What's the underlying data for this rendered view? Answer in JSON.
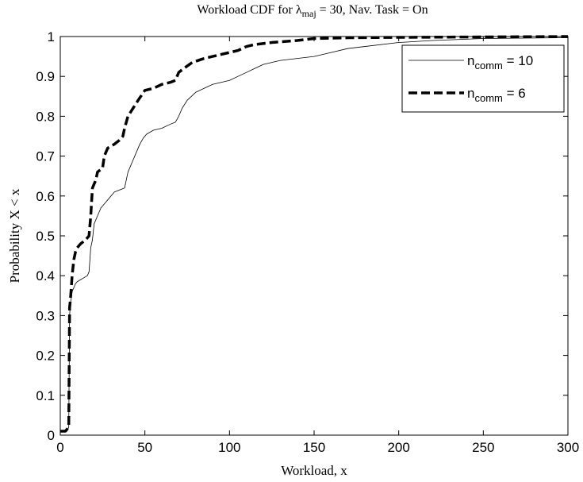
{
  "chart_data": {
    "type": "line",
    "title": {
      "prefix": "Workload CDF for ",
      "symbol": "λ",
      "subscript": "maj",
      "suffix": " = 30, Nav. Task = On"
    },
    "xlabel": "Workload, x",
    "ylabel": "Probability X < x",
    "xlim": [
      0,
      300
    ],
    "ylim": [
      0,
      1
    ],
    "xticks": [
      "0",
      "50",
      "100",
      "150",
      "200",
      "250",
      "300"
    ],
    "yticks": [
      "0",
      "0.1",
      "0.2",
      "0.3",
      "0.4",
      "0.5",
      "0.6",
      "0.7",
      "0.8",
      "0.9",
      "1"
    ],
    "grid": false,
    "legend_position": "top-right",
    "series": [
      {
        "label": {
          "base": "n",
          "subscript": "comm",
          "suffix": " = 10"
        },
        "style": "thin-solid",
        "color": "#000000",
        "points": [
          [
            0,
            0.01
          ],
          [
            4,
            0.01
          ],
          [
            5,
            0.02
          ],
          [
            5.5,
            0.3
          ],
          [
            6,
            0.33
          ],
          [
            7,
            0.36
          ],
          [
            8,
            0.37
          ],
          [
            9,
            0.38
          ],
          [
            10,
            0.385
          ],
          [
            12,
            0.39
          ],
          [
            14,
            0.395
          ],
          [
            16,
            0.4
          ],
          [
            17,
            0.41
          ],
          [
            18,
            0.47
          ],
          [
            19,
            0.49
          ],
          [
            20,
            0.53
          ],
          [
            22,
            0.55
          ],
          [
            24,
            0.57
          ],
          [
            26,
            0.58
          ],
          [
            28,
            0.59
          ],
          [
            30,
            0.6
          ],
          [
            32,
            0.61
          ],
          [
            35,
            0.615
          ],
          [
            38,
            0.62
          ],
          [
            39,
            0.64
          ],
          [
            40,
            0.66
          ],
          [
            41,
            0.67
          ],
          [
            43,
            0.69
          ],
          [
            45,
            0.71
          ],
          [
            47,
            0.73
          ],
          [
            49,
            0.745
          ],
          [
            51,
            0.755
          ],
          [
            55,
            0.765
          ],
          [
            60,
            0.77
          ],
          [
            65,
            0.78
          ],
          [
            68,
            0.785
          ],
          [
            70,
            0.8
          ],
          [
            72,
            0.82
          ],
          [
            75,
            0.84
          ],
          [
            80,
            0.86
          ],
          [
            85,
            0.87
          ],
          [
            90,
            0.88
          ],
          [
            95,
            0.885
          ],
          [
            100,
            0.89
          ],
          [
            105,
            0.9
          ],
          [
            110,
            0.91
          ],
          [
            115,
            0.92
          ],
          [
            120,
            0.93
          ],
          [
            130,
            0.94
          ],
          [
            140,
            0.945
          ],
          [
            150,
            0.95
          ],
          [
            160,
            0.96
          ],
          [
            170,
            0.97
          ],
          [
            180,
            0.975
          ],
          [
            200,
            0.985
          ],
          [
            220,
            0.99
          ],
          [
            250,
            0.995
          ],
          [
            300,
            0.997
          ]
        ]
      },
      {
        "label": {
          "base": "n",
          "subscript": "comm",
          "suffix": " = 6"
        },
        "style": "thick-dashed",
        "color": "#000000",
        "points": [
          [
            0,
            0.01
          ],
          [
            3,
            0.01
          ],
          [
            5,
            0.02
          ],
          [
            5.5,
            0.32
          ],
          [
            6,
            0.34
          ],
          [
            7,
            0.4
          ],
          [
            8,
            0.44
          ],
          [
            9,
            0.46
          ],
          [
            10,
            0.47
          ],
          [
            12,
            0.48
          ],
          [
            15,
            0.49
          ],
          [
            17,
            0.5
          ],
          [
            18,
            0.55
          ],
          [
            19,
            0.62
          ],
          [
            20,
            0.63
          ],
          [
            21,
            0.64
          ],
          [
            22,
            0.66
          ],
          [
            25,
            0.67
          ],
          [
            26,
            0.7
          ],
          [
            28,
            0.72
          ],
          [
            32,
            0.73
          ],
          [
            35,
            0.74
          ],
          [
            37,
            0.75
          ],
          [
            38,
            0.77
          ],
          [
            40,
            0.8
          ],
          [
            43,
            0.82
          ],
          [
            46,
            0.84
          ],
          [
            50,
            0.865
          ],
          [
            55,
            0.87
          ],
          [
            60,
            0.88
          ],
          [
            65,
            0.885
          ],
          [
            68,
            0.89
          ],
          [
            70,
            0.91
          ],
          [
            73,
            0.92
          ],
          [
            78,
            0.935
          ],
          [
            85,
            0.945
          ],
          [
            90,
            0.95
          ],
          [
            95,
            0.955
          ],
          [
            100,
            0.96
          ],
          [
            105,
            0.965
          ],
          [
            110,
            0.975
          ],
          [
            115,
            0.98
          ],
          [
            125,
            0.985
          ],
          [
            140,
            0.99
          ],
          [
            150,
            0.995
          ],
          [
            170,
            0.997
          ],
          [
            200,
            0.998
          ],
          [
            300,
            1.0
          ]
        ]
      }
    ]
  }
}
